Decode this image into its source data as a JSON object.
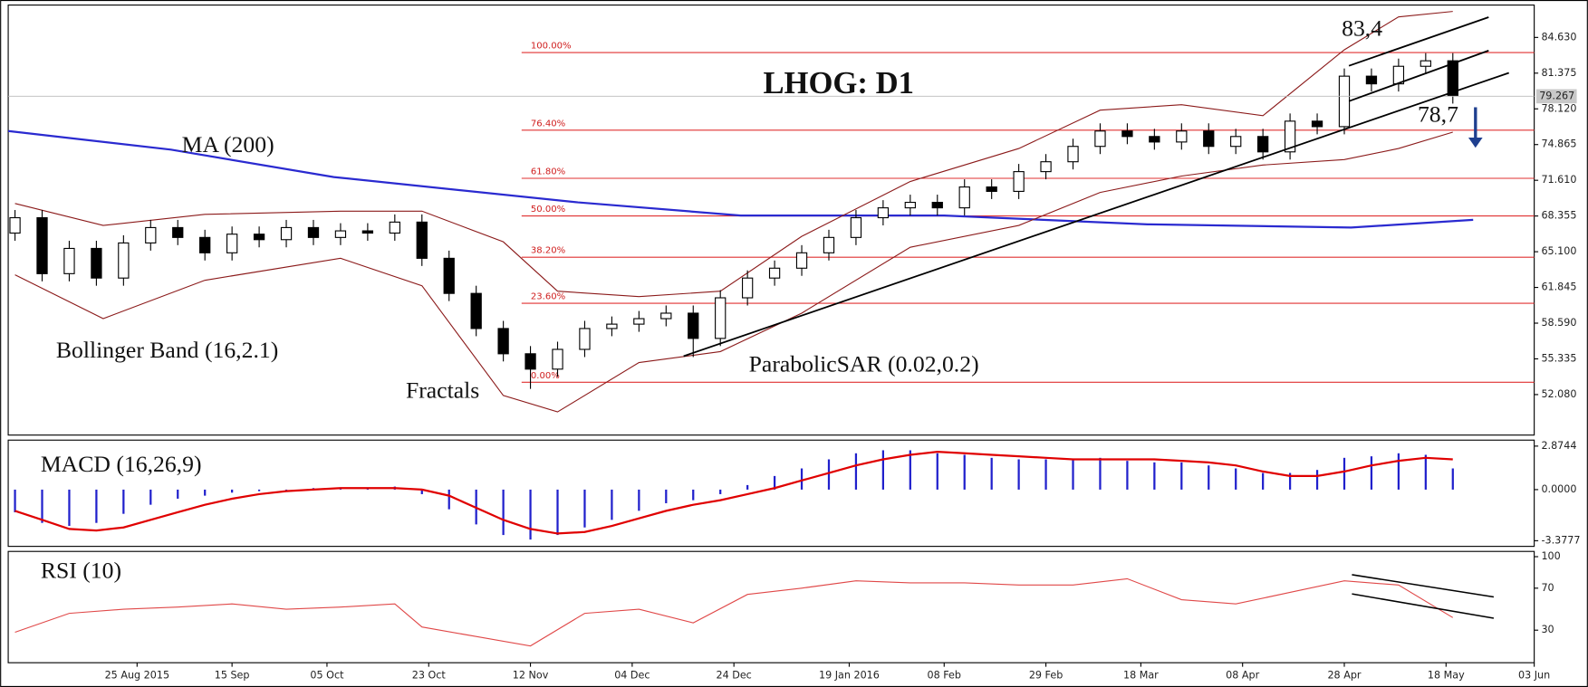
{
  "chart_data": [
    {
      "type": "candlestick",
      "title": "LHOG: D1",
      "x": [
        -3,
        1,
        5,
        9,
        13,
        17,
        21,
        25,
        29,
        33,
        37,
        41,
        45,
        49,
        53,
        57,
        61,
        65,
        69,
        73,
        77,
        81,
        85,
        89,
        93,
        97,
        101,
        105,
        109,
        113,
        117,
        121,
        125,
        129,
        133,
        137,
        141,
        145,
        149,
        153,
        157,
        161,
        165,
        169,
        173,
        177,
        181,
        185,
        189,
        193,
        197,
        201,
        205,
        209
      ],
      "open": [
        66.8,
        68.2,
        63.1,
        65.4,
        62.7,
        65.9,
        67.3,
        66.4,
        65.0,
        66.7,
        66.2,
        67.3,
        66.4,
        67.0,
        66.8,
        67.8,
        64.5,
        61.3,
        58.1,
        55.8,
        54.4,
        56.2,
        58.1,
        58.5,
        59.0,
        59.5,
        57.2,
        60.9,
        62.7,
        63.6,
        65.0,
        66.4,
        68.2,
        69.1,
        69.6,
        69.1,
        71.0,
        70.6,
        72.4,
        73.3,
        74.7,
        76.1,
        75.6,
        75.1,
        76.1,
        74.7,
        75.6,
        74.2,
        77.0,
        76.5,
        81.1,
        80.4,
        82.0,
        82.5
      ],
      "high": [
        68.9,
        68.9,
        66.1,
        66.1,
        66.6,
        68.0,
        68.0,
        67.1,
        67.4,
        67.4,
        68.0,
        68.0,
        67.7,
        67.7,
        68.5,
        68.5,
        65.2,
        62.0,
        58.8,
        56.5,
        56.9,
        58.8,
        59.2,
        59.7,
        60.2,
        60.2,
        61.6,
        63.4,
        64.3,
        65.7,
        67.1,
        68.9,
        69.8,
        70.3,
        70.3,
        71.7,
        71.7,
        73.1,
        74.0,
        75.4,
        76.8,
        76.8,
        76.3,
        76.8,
        76.8,
        76.3,
        76.3,
        77.7,
        77.7,
        81.8,
        81.8,
        82.7,
        83.2,
        83.2
      ],
      "low": [
        66.1,
        62.4,
        62.4,
        62.0,
        62.0,
        65.2,
        65.7,
        64.3,
        64.3,
        65.5,
        65.5,
        65.7,
        65.7,
        66.1,
        66.1,
        63.8,
        60.6,
        57.4,
        55.1,
        52.6,
        53.7,
        55.5,
        57.4,
        57.8,
        58.3,
        55.5,
        56.5,
        60.2,
        62.0,
        62.9,
        64.3,
        65.7,
        67.5,
        68.4,
        68.4,
        68.4,
        69.9,
        69.9,
        71.7,
        72.6,
        74.0,
        74.9,
        74.4,
        74.4,
        74.0,
        74.0,
        73.5,
        73.5,
        75.8,
        75.8,
        79.7,
        79.7,
        81.3,
        78.6
      ],
      "close": [
        68.2,
        63.1,
        65.4,
        62.7,
        65.9,
        67.3,
        66.4,
        65.0,
        66.7,
        66.2,
        67.3,
        66.4,
        67.0,
        66.8,
        67.8,
        64.5,
        61.3,
        58.1,
        55.8,
        54.4,
        56.2,
        58.1,
        58.5,
        59.0,
        59.5,
        57.2,
        60.9,
        62.7,
        63.6,
        65.0,
        66.4,
        68.2,
        69.1,
        69.6,
        69.1,
        71.0,
        70.6,
        72.4,
        73.3,
        74.7,
        76.1,
        75.6,
        75.1,
        76.1,
        74.7,
        75.6,
        74.2,
        77.0,
        76.5,
        81.1,
        80.4,
        82.0,
        82.5,
        79.3
      ],
      "ma": {
        "name": "MA (200)",
        "color": "#2a2ad0",
        "x": [
          -4,
          20,
          44,
          80,
          104,
          134,
          164,
          194,
          212
        ],
        "values": [
          76.1,
          74.4,
          71.9,
          69.6,
          68.4,
          68.4,
          67.6,
          67.3,
          68.0
        ]
      },
      "bollinger": {
        "name": "Bollinger Band (16,2.1)",
        "color": "#8b1a1a",
        "x": [
          -3,
          10,
          25,
          45,
          57,
          69,
          77,
          89,
          101,
          113,
          129,
          145,
          157,
          169,
          181,
          193,
          201,
          209
        ],
        "upper": [
          69.5,
          67.5,
          68.5,
          68.8,
          68.8,
          66.0,
          61.5,
          61.0,
          61.5,
          66.5,
          71.5,
          74.5,
          78.0,
          78.5,
          77.5,
          83.5,
          86.5,
          87.0
        ],
        "lower": [
          63.0,
          59.0,
          62.5,
          64.5,
          62.0,
          52.0,
          50.5,
          55.0,
          56.0,
          59.5,
          65.5,
          67.5,
          70.5,
          72.0,
          73.0,
          73.5,
          74.5,
          76.0
        ]
      },
      "fib_levels": [
        {
          "value": 83.25,
          "label": "100.00%"
        },
        {
          "value": 76.18,
          "label": "76.40%"
        },
        {
          "value": 71.79,
          "label": "61.80%"
        },
        {
          "value": 68.36,
          "label": "50.00%"
        },
        {
          "value": 64.6,
          "label": "38.20%"
        },
        {
          "value": 60.4,
          "label": "23.60%"
        },
        {
          "value": 53.2,
          "label": "0.00%"
        }
      ],
      "fib_color": "#e03030",
      "annotations": [
        "Fractals",
        "ParabolicSAR (0.02,0.2)",
        "83,4",
        "78,7"
      ],
      "last_price": 79.267,
      "xlim": [
        -4,
        221
      ],
      "ylim": [
        48.39,
        87.58
      ],
      "yticks": [
        {
          "value": 84.63,
          "label": "84.630"
        },
        {
          "value": 81.375,
          "label": "81.375"
        },
        {
          "value": 78.12,
          "label": "78.120"
        },
        {
          "value": 74.865,
          "label": "74.865"
        },
        {
          "value": 71.61,
          "label": "71.610"
        },
        {
          "value": 68.355,
          "label": "68.355"
        },
        {
          "value": 65.1,
          "label": "65.100"
        },
        {
          "value": 61.845,
          "label": "61.845"
        },
        {
          "value": 58.59,
          "label": "58.590"
        },
        {
          "value": 55.335,
          "label": "55.335"
        },
        {
          "value": 52.08,
          "label": "52.080"
        }
      ]
    },
    {
      "type": "bar",
      "title": "MACD (16,26,9)",
      "x": [
        -3,
        1,
        5,
        9,
        13,
        17,
        21,
        25,
        29,
        33,
        37,
        41,
        45,
        49,
        53,
        57,
        61,
        65,
        69,
        73,
        77,
        81,
        85,
        89,
        93,
        97,
        101,
        105,
        109,
        113,
        117,
        121,
        125,
        129,
        133,
        137,
        141,
        145,
        149,
        153,
        157,
        161,
        165,
        169,
        173,
        177,
        181,
        185,
        189,
        193,
        197,
        201,
        205,
        209
      ],
      "histogram": {
        "color": "#2020cc",
        "values": [
          -1.5,
          -2.2,
          -2.4,
          -2.2,
          -1.6,
          -1.0,
          -0.6,
          -0.4,
          -0.2,
          -0.1,
          0.0,
          0.1,
          0.1,
          0.1,
          0.2,
          -0.3,
          -1.3,
          -2.3,
          -3.0,
          -3.3,
          -3.0,
          -2.5,
          -2.0,
          -1.4,
          -0.9,
          -0.7,
          -0.3,
          0.3,
          0.9,
          1.4,
          2.0,
          2.4,
          2.6,
          2.6,
          2.4,
          2.3,
          2.1,
          2.0,
          2.0,
          2.0,
          2.1,
          1.9,
          1.8,
          1.8,
          1.6,
          1.4,
          1.1,
          1.1,
          1.3,
          2.1,
          2.2,
          2.4,
          2.3,
          1.4
        ]
      },
      "signal": {
        "color": "#e00000",
        "values": [
          -1.4,
          -2.0,
          -2.6,
          -2.7,
          -2.5,
          -2.0,
          -1.5,
          -1.0,
          -0.6,
          -0.3,
          -0.1,
          0.0,
          0.1,
          0.1,
          0.1,
          0.0,
          -0.4,
          -1.2,
          -2.0,
          -2.6,
          -2.9,
          -2.8,
          -2.4,
          -1.9,
          -1.4,
          -1.0,
          -0.7,
          -0.3,
          0.1,
          0.6,
          1.1,
          1.6,
          2.0,
          2.3,
          2.5,
          2.4,
          2.3,
          2.2,
          2.1,
          2.0,
          2.0,
          2.0,
          2.0,
          1.9,
          1.8,
          1.6,
          1.2,
          0.9,
          0.9,
          1.2,
          1.6,
          1.9,
          2.1,
          2.0
        ]
      },
      "xlim": [
        -4,
        221
      ],
      "ylim": [
        -3.75,
        3.27
      ],
      "yticks": [
        2.8744,
        {
          "value": 0,
          "label": "0.0000"
        },
        -3.3777
      ]
    },
    {
      "type": "line",
      "title": "RSI (10)",
      "color": "#e04848",
      "x": [
        -3,
        5,
        13,
        21,
        29,
        37,
        45,
        53,
        57,
        65,
        73,
        81,
        89,
        97,
        105,
        113,
        121,
        129,
        137,
        145,
        153,
        161,
        169,
        177,
        185,
        193,
        201,
        209
      ],
      "values": [
        28,
        46,
        50,
        52,
        55,
        50,
        52,
        55,
        33,
        24,
        15,
        46,
        50,
        37,
        64,
        70,
        77,
        75,
        75,
        73,
        73,
        79,
        59,
        55,
        66,
        77,
        73,
        42
      ],
      "xlim": [
        -4,
        221
      ],
      "ylim": [
        -1,
        105
      ],
      "yticks": [
        100,
        70,
        30
      ],
      "xticks": [
        {
          "value": 15,
          "label": "25 Aug 2015"
        },
        {
          "value": 29,
          "label": "15 Sep"
        },
        {
          "value": 43,
          "label": "05 Oct"
        },
        {
          "value": 58,
          "label": "23 Oct"
        },
        {
          "value": 73,
          "label": "12 Nov"
        },
        {
          "value": 88,
          "label": "04 Dec"
        },
        {
          "value": 103,
          "label": "24 Dec"
        },
        {
          "value": 120,
          "label": "19 Jan 2016"
        },
        {
          "value": 134,
          "label": "08 Feb"
        },
        {
          "value": 149,
          "label": "29 Feb"
        },
        {
          "value": 163,
          "label": "18 Mar"
        },
        {
          "value": 178,
          "label": "08 Apr"
        },
        {
          "value": 193,
          "label": "28 Apr"
        },
        {
          "value": 208,
          "label": "18 May"
        },
        {
          "value": 221,
          "label": "03 Jun"
        }
      ]
    }
  ]
}
